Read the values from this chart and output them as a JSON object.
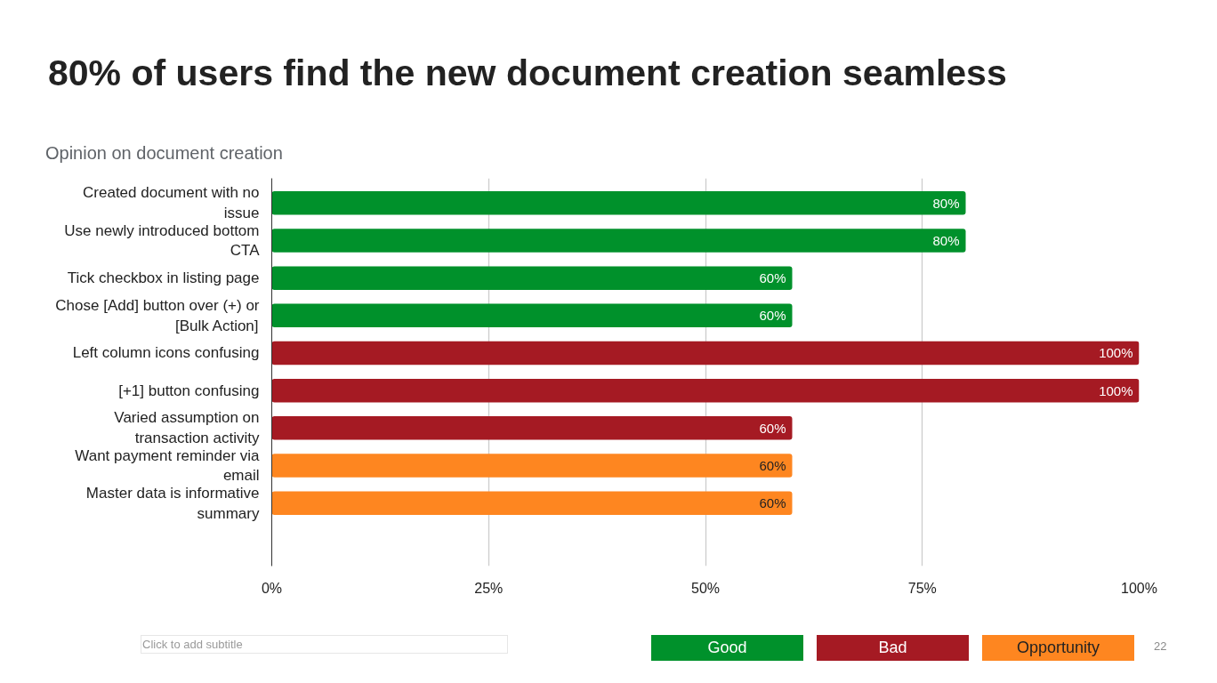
{
  "chart_data": {
    "type": "bar",
    "orientation": "horizontal",
    "stacked": true,
    "title": "80% of users find the new document creation seamless",
    "subtitle": "Opinion on document creation",
    "categories": [
      "Created document with no issue",
      "Use newly introduced bottom CTA",
      "Tick checkbox in listing page",
      "Chose [Add] button over (+) or [Bulk Action]",
      "Left column icons confusing",
      "[+1] button confusing",
      "Varied assumption on transaction activity",
      "Want payment reminder via email",
      "Master data is informative summary"
    ],
    "series": [
      {
        "name": "Good",
        "color": "#00912b",
        "values": [
          80,
          80,
          60,
          60,
          null,
          null,
          null,
          null,
          null
        ],
        "value_labels": [
          "80%",
          "80%",
          "60%",
          "60%",
          null,
          null,
          null,
          null,
          null
        ]
      },
      {
        "name": "Bad",
        "color": "#a51a23",
        "values": [
          null,
          null,
          null,
          null,
          100,
          100,
          60,
          null,
          null
        ],
        "value_labels": [
          null,
          null,
          null,
          null,
          "100%",
          "100%",
          "60%",
          null,
          null
        ]
      },
      {
        "name": "Opportunity",
        "color": "#fe8620",
        "values": [
          null,
          null,
          null,
          null,
          null,
          null,
          null,
          60,
          60
        ],
        "value_labels": [
          null,
          null,
          null,
          null,
          null,
          null,
          null,
          "60%",
          "60%"
        ]
      }
    ],
    "xlim": [
      0,
      100
    ],
    "xticks": [
      {
        "value": 0,
        "label": "0%"
      },
      {
        "value": 25,
        "label": "25%"
      },
      {
        "value": 50,
        "label": "50%"
      },
      {
        "value": 75,
        "label": "75%"
      },
      {
        "value": 100,
        "label": "100%"
      }
    ],
    "grid": "x",
    "legend": "bottom right",
    "annotations": [
      "Click to add subtitle",
      "22"
    ]
  }
}
